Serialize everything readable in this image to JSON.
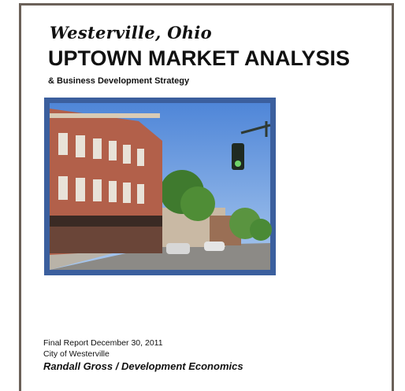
{
  "header": {
    "place": "Westerville, Ohio",
    "title": "UPTOWN MARKET ANALYSIS",
    "subtitle": "& Business Development Strategy"
  },
  "footer": {
    "report_date": "Final Report December 30, 2011",
    "client": "City of Westerville",
    "author": "Randall Gross / Development Economics"
  }
}
